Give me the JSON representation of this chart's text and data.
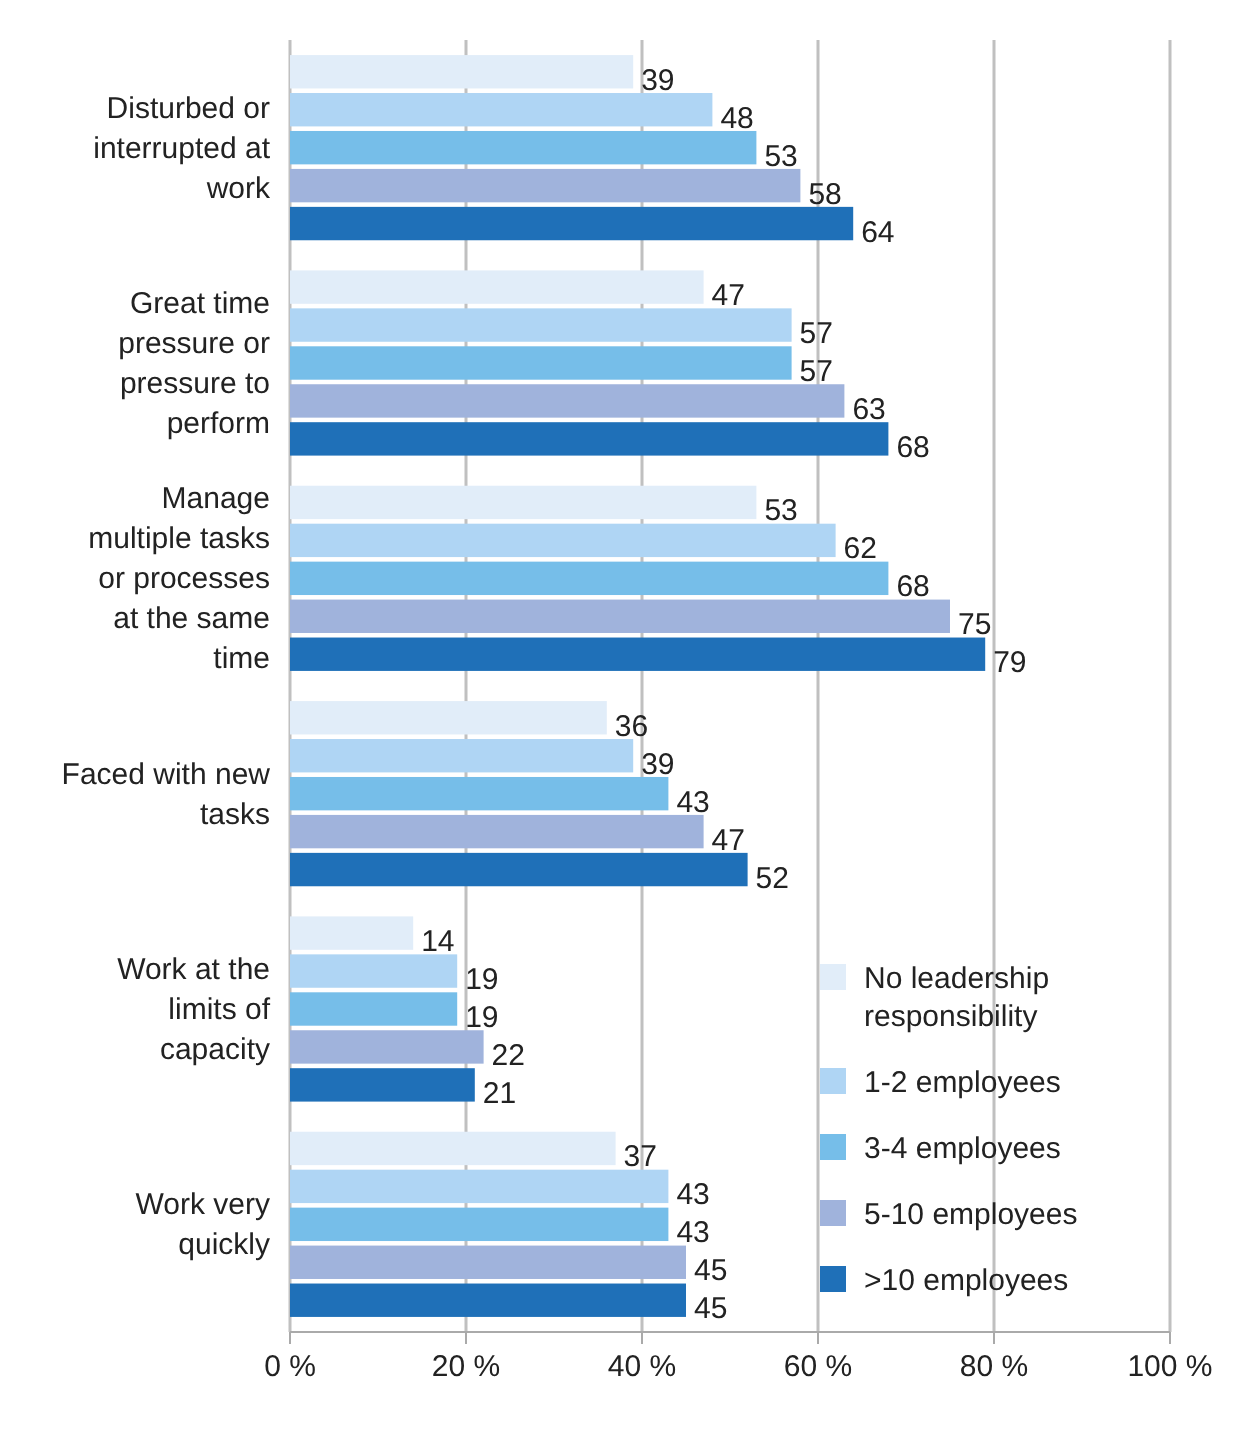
{
  "chart_data": {
    "type": "bar",
    "orientation": "horizontal",
    "categories": [
      "Disturbed or interrupted at work",
      "Great time pressure or pressure to perform",
      "Manage multiple tasks or processes at the same time",
      "Faced with new tasks",
      "Work at the limits of capacity",
      "Work very quickly"
    ],
    "series": [
      {
        "name": "No leadership responsibility",
        "color": "#e1edf9",
        "values": [
          39,
          47,
          53,
          36,
          14,
          37
        ]
      },
      {
        "name": "1-2 employees",
        "color": "#afd5f4",
        "values": [
          48,
          57,
          62,
          39,
          19,
          43
        ]
      },
      {
        "name": "3-4 employees",
        "color": "#76bee9",
        "values": [
          53,
          57,
          68,
          43,
          19,
          43
        ]
      },
      {
        "name": "5-10 employees",
        "color": "#a0b3dc",
        "values": [
          58,
          63,
          75,
          47,
          22,
          45
        ]
      },
      {
        "name": ">10 employees",
        "color": "#1f70b8",
        "values": [
          64,
          68,
          79,
          52,
          21,
          45
        ]
      }
    ],
    "xlim": [
      0,
      100
    ],
    "xticks": [
      {
        "value": 0,
        "label": "0 %"
      },
      {
        "value": 20,
        "label": "20 %"
      },
      {
        "value": 40,
        "label": "40 %"
      },
      {
        "value": 60,
        "label": "60 %"
      },
      {
        "value": 80,
        "label": "80 %"
      },
      {
        "value": 100,
        "label": "100 %"
      }
    ],
    "grid": "x",
    "legend": "bottom right",
    "data_labels": true
  }
}
